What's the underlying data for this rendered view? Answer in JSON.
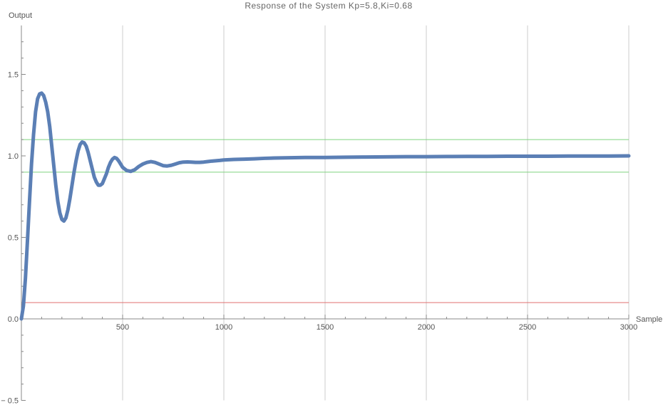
{
  "chart_data": {
    "type": "line",
    "title": "Response of the System Kp=5.8,Ki=0.68",
    "xlabel": "Sample",
    "ylabel": "Output",
    "xlim": [
      0,
      3000
    ],
    "ylim": [
      -0.5,
      1.8
    ],
    "x_ticks": [
      500,
      1000,
      1500,
      2000,
      2500,
      3000
    ],
    "y_ticks": [
      -0.5,
      0.0,
      0.5,
      1.0,
      1.5
    ],
    "y_tick_labels": [
      "− 0.5",
      "0.0",
      "0.5",
      "1.0",
      "1.5"
    ],
    "x_tick_labels": [
      "500",
      "1000",
      "1500",
      "2000",
      "2500",
      "3000"
    ],
    "grid": {
      "vertical": true,
      "horizontal": false
    },
    "reference_lines": [
      {
        "y": 1.1,
        "color": "#7fd37f"
      },
      {
        "y": 0.9,
        "color": "#7fd37f"
      },
      {
        "y": 0.1,
        "color": "#e07070"
      }
    ],
    "series": [
      {
        "color": "#5b7fb5",
        "x": [
          0,
          10,
          20,
          30,
          40,
          50,
          60,
          70,
          80,
          90,
          100,
          110,
          120,
          125,
          130,
          140,
          150,
          160,
          170,
          180,
          190,
          200,
          210,
          220,
          230,
          240,
          250,
          260,
          270,
          280,
          290,
          300,
          310,
          320,
          330,
          340,
          350,
          360,
          370,
          380,
          390,
          400,
          410,
          420,
          430,
          440,
          450,
          460,
          470,
          480,
          490,
          500,
          520,
          540,
          560,
          580,
          600,
          620,
          640,
          660,
          680,
          700,
          720,
          740,
          760,
          780,
          800,
          820,
          840,
          860,
          880,
          900,
          920,
          940,
          960,
          980,
          1000,
          1050,
          1100,
          1150,
          1200,
          1250,
          1300,
          1400,
          1500,
          1600,
          1700,
          1800,
          1900,
          2000,
          2100,
          2200,
          2300,
          2400,
          2500,
          2600,
          2700,
          2800,
          2900,
          3000
        ],
        "y": [
          0.0,
          0.08,
          0.25,
          0.48,
          0.72,
          0.95,
          1.13,
          1.27,
          1.35,
          1.38,
          1.385,
          1.37,
          1.33,
          1.3,
          1.27,
          1.18,
          1.06,
          0.94,
          0.82,
          0.72,
          0.65,
          0.61,
          0.6,
          0.62,
          0.67,
          0.74,
          0.82,
          0.9,
          0.97,
          1.03,
          1.07,
          1.085,
          1.08,
          1.06,
          1.02,
          0.97,
          0.92,
          0.87,
          0.84,
          0.82,
          0.82,
          0.83,
          0.86,
          0.89,
          0.93,
          0.96,
          0.98,
          0.99,
          0.985,
          0.97,
          0.95,
          0.93,
          0.91,
          0.905,
          0.915,
          0.935,
          0.95,
          0.96,
          0.965,
          0.96,
          0.95,
          0.94,
          0.938,
          0.942,
          0.95,
          0.958,
          0.962,
          0.963,
          0.962,
          0.96,
          0.96,
          0.962,
          0.965,
          0.968,
          0.97,
          0.972,
          0.975,
          0.978,
          0.98,
          0.982,
          0.985,
          0.987,
          0.988,
          0.99,
          0.99,
          0.992,
          0.993,
          0.994,
          0.995,
          0.995,
          0.996,
          0.997,
          0.997,
          0.998,
          0.998,
          0.998,
          0.999,
          0.999,
          0.999,
          1.0
        ]
      }
    ]
  }
}
